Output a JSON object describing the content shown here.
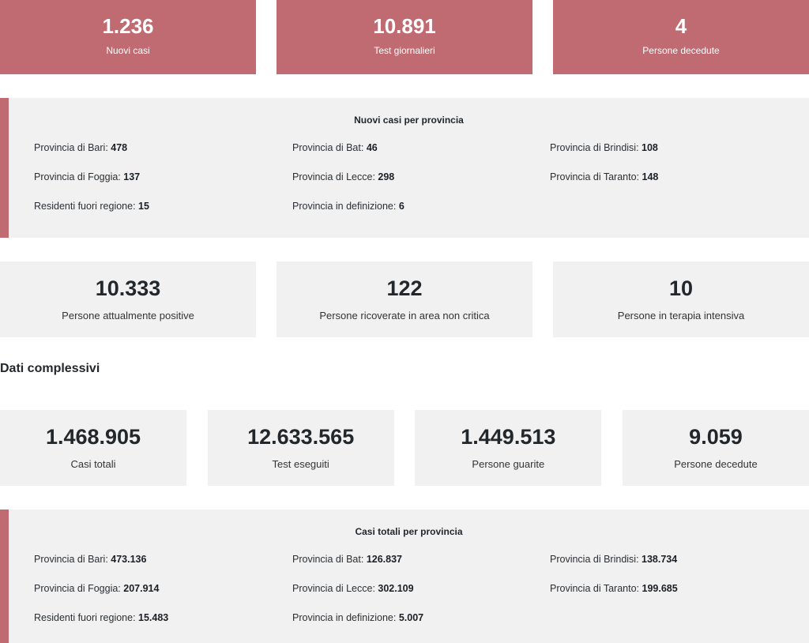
{
  "daily": [
    {
      "value": "1.236",
      "label": "Nuovi casi"
    },
    {
      "value": "10.891",
      "label": "Test giornalieri"
    },
    {
      "value": "4",
      "label": "Persone decedute"
    }
  ],
  "daily_provinces": {
    "title": "Nuovi casi per provincia",
    "items": [
      {
        "label": "Provincia di Bari:",
        "value": "478"
      },
      {
        "label": "Provincia di Bat:",
        "value": "46"
      },
      {
        "label": "Provincia di Brindisi:",
        "value": "108"
      },
      {
        "label": "Provincia di Foggia:",
        "value": "137"
      },
      {
        "label": "Provincia di Lecce:",
        "value": "298"
      },
      {
        "label": "Provincia di Taranto:",
        "value": "148"
      },
      {
        "label": "Residenti fuori regione:",
        "value": "15"
      },
      {
        "label": "Provincia in definizione:",
        "value": "6"
      }
    ]
  },
  "status": [
    {
      "value": "10.333",
      "label": "Persone attualmente positive"
    },
    {
      "value": "122",
      "label": "Persone ricoverate in area non critica"
    },
    {
      "value": "10",
      "label": "Persone in terapia intensiva"
    }
  ],
  "totals_section_title": "Dati complessivi",
  "totals": [
    {
      "value": "1.468.905",
      "label": "Casi totali"
    },
    {
      "value": "12.633.565",
      "label": "Test eseguiti"
    },
    {
      "value": "1.449.513",
      "label": "Persone guarite"
    },
    {
      "value": "9.059",
      "label": "Persone decedute"
    }
  ],
  "total_provinces": {
    "title": "Casi totali per provincia",
    "items": [
      {
        "label": "Provincia di Bari:",
        "value": "473.136"
      },
      {
        "label": "Provincia di Bat:",
        "value": "126.837"
      },
      {
        "label": "Provincia di Brindisi:",
        "value": "138.734"
      },
      {
        "label": "Provincia di Foggia:",
        "value": "207.914"
      },
      {
        "label": "Provincia di Lecce:",
        "value": "302.109"
      },
      {
        "label": "Provincia di Taranto:",
        "value": "199.685"
      },
      {
        "label": "Residenti fuori regione:",
        "value": "15.483"
      },
      {
        "label": "Provincia in definizione:",
        "value": "5.007"
      }
    ]
  },
  "colors": {
    "accent": "#c06b72",
    "card_bg": "#f1f1f1",
    "text": "#22272c"
  }
}
